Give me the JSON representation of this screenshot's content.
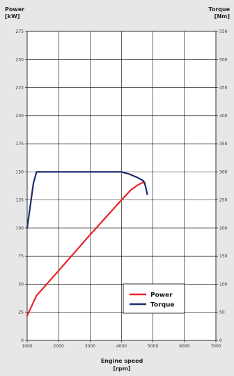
{
  "chart_data": {
    "type": "line",
    "title": "",
    "xlabel": [
      "Engine speed",
      "[rpm]"
    ],
    "ylabel_left": [
      "Power",
      "[kW]"
    ],
    "ylabel_right": [
      "Torque",
      "[Nm]"
    ],
    "xlim": [
      1000,
      7000
    ],
    "x_ticks": [
      1000,
      2000,
      3000,
      4000,
      5000,
      6000,
      7000
    ],
    "ylim_left": [
      0,
      275
    ],
    "y_ticks_left": [
      0,
      25,
      50,
      75,
      100,
      125,
      150,
      175,
      200,
      225,
      250,
      275
    ],
    "ylim_right": [
      0,
      550
    ],
    "y_ticks_right": [
      0,
      50,
      100,
      150,
      200,
      250,
      300,
      350,
      400,
      450,
      500,
      550
    ],
    "grid": true,
    "legend_position": "bottom-right",
    "series": [
      {
        "name": "Power",
        "axis": "left",
        "color": "#e8232b",
        "x": [
          1000,
          1300,
          2000,
          3000,
          4000,
          4300,
          4500,
          4700,
          4750
        ],
        "y": [
          22,
          40,
          62,
          94,
          125,
          134,
          138,
          141,
          140
        ]
      },
      {
        "name": "Torque",
        "axis": "right",
        "color": "#1d2a6b",
        "x": [
          1000,
          1100,
          1200,
          1300,
          2000,
          3000,
          4000,
          4250,
          4500,
          4700,
          4760,
          4820
        ],
        "y": [
          200,
          240,
          280,
          300,
          300,
          300,
          300,
          296,
          290,
          284,
          275,
          260
        ]
      }
    ]
  }
}
